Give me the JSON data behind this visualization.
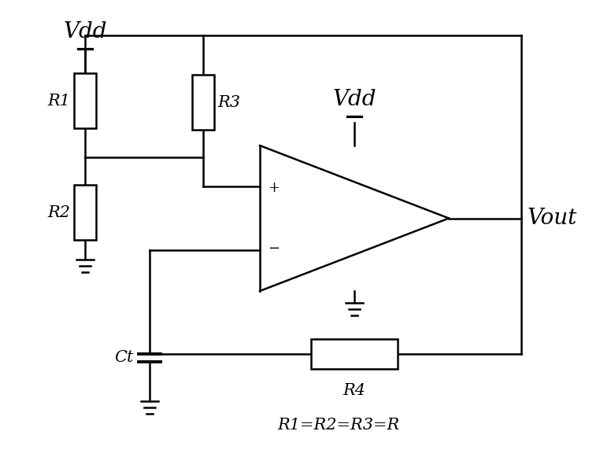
{
  "bg_color": "#ffffff",
  "line_color": "#000000",
  "line_width": 1.8,
  "font_size_large": 20,
  "font_size_medium": 15,
  "labels": {
    "Vdd_top": "Vdd",
    "Vdd_opamp": "Vdd",
    "R1": "R1",
    "R2": "R2",
    "R3": "R3",
    "R4": "R4",
    "Ct": "Ct",
    "Vout": "Vout",
    "equation": "R1=R2=R3=R"
  }
}
